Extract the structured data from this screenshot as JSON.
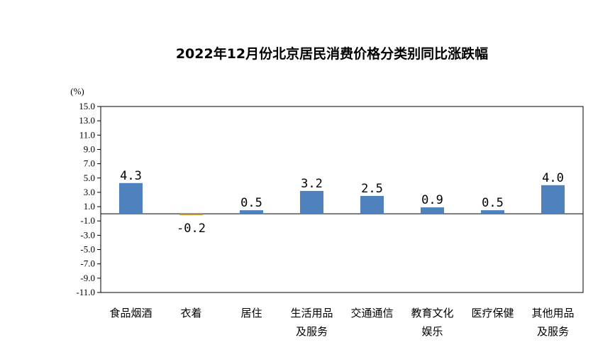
{
  "chart_data": {
    "type": "bar",
    "title": "2022年12月份北京居民消费价格分类别同比涨跌幅",
    "unit_label": "(%)",
    "categories": [
      [
        "食品烟酒"
      ],
      [
        "衣着"
      ],
      [
        "居住"
      ],
      [
        "生活用品",
        "及服务"
      ],
      [
        "交通通信"
      ],
      [
        "教育文化",
        "娱乐"
      ],
      [
        "医疗保健"
      ],
      [
        "其他用品",
        "及服务"
      ]
    ],
    "values": [
      4.3,
      -0.2,
      0.5,
      3.2,
      2.5,
      0.9,
      0.5,
      4.0
    ],
    "data_labels": [
      "4.3",
      "-0.2",
      "0.5",
      "3.2",
      "2.5",
      "0.9",
      "0.5",
      "4.0"
    ],
    "ylim": [
      -11.0,
      15.0
    ],
    "yticks": [
      "15.0",
      "13.0",
      "11.0",
      "9.0",
      "7.0",
      "5.0",
      "3.0",
      "1.0",
      "-1.0",
      "-3.0",
      "-5.0",
      "-7.0",
      "-9.0",
      "-11.0"
    ],
    "grid": false,
    "colors": {
      "positive_bar": "#4f81bd",
      "negative_bar": "#c9a227",
      "axis": "#000000"
    }
  }
}
